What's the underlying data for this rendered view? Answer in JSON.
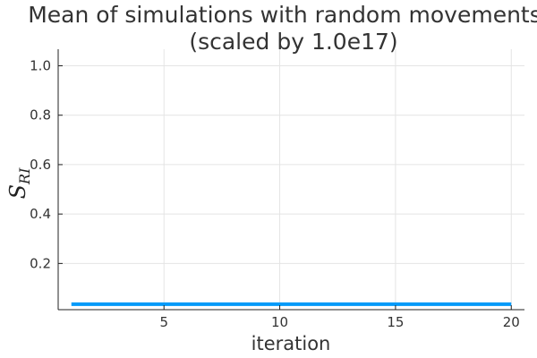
{
  "chart_data": {
    "type": "line",
    "title": "Mean of simulations with random movements",
    "subtitle": "(scaled by 1.0e17)",
    "xlabel": "iteration",
    "ylabel": {
      "main": "S",
      "subscript": "RI"
    },
    "xlim": [
      0.43,
      20.57
    ],
    "ylim": [
      0.013,
      1.067
    ],
    "x_ticks": [
      5,
      10,
      15,
      20
    ],
    "y_ticks": [
      0.2,
      0.4,
      0.6,
      0.8,
      1.0
    ],
    "x_tick_labels": [
      "5",
      "10",
      "15",
      "20"
    ],
    "y_tick_labels": [
      "0.2",
      "0.4",
      "0.6",
      "0.8",
      "1.0"
    ],
    "grid": true,
    "legend": "none",
    "series": [
      {
        "color": "#009af9",
        "x": [
          1,
          2,
          3,
          4,
          5,
          6,
          7,
          8,
          9,
          10,
          11,
          12,
          13,
          14,
          15,
          16,
          17,
          18,
          19,
          20
        ],
        "y": [
          0.035,
          0.035,
          0.035,
          0.035,
          0.035,
          0.035,
          0.035,
          0.035,
          0.035,
          0.035,
          0.035,
          0.035,
          0.035,
          0.035,
          0.035,
          0.035,
          0.035,
          0.035,
          0.035,
          0.035
        ]
      }
    ]
  }
}
